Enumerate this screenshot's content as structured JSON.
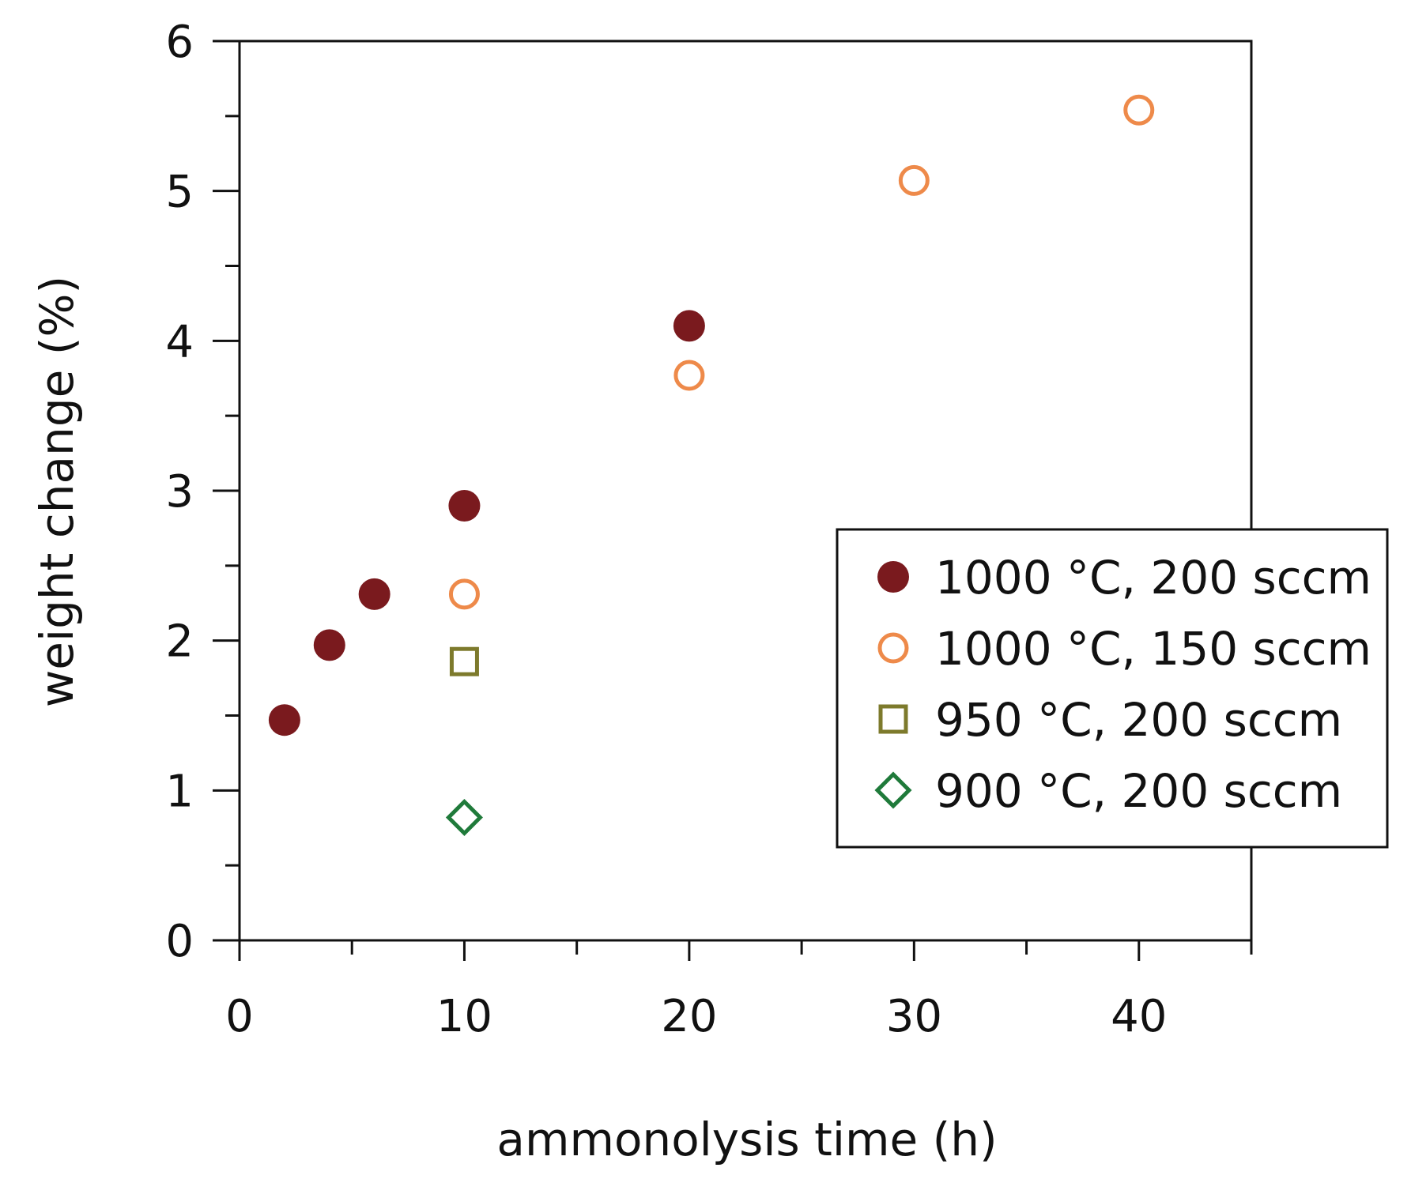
{
  "chart_data": {
    "type": "scatter",
    "xlabel": "ammonolysis time (h)",
    "ylabel": "weight change (%)",
    "xlim": [
      0,
      45
    ],
    "ylim": [
      0,
      6
    ],
    "x_ticks": [
      0,
      10,
      20,
      30,
      40
    ],
    "x_minor_ticks": [
      5,
      15,
      25,
      35,
      45
    ],
    "y_ticks": [
      0,
      1,
      2,
      3,
      4,
      5,
      6
    ],
    "y_minor_ticks": [
      0.5,
      1.5,
      2.5,
      3.5,
      4.5,
      5.5
    ],
    "grid": false,
    "legend_position": "right",
    "series": [
      {
        "name": "1000 °C, 200 sccm",
        "marker": "filled-circle",
        "color": "#7a1a1e",
        "points": [
          [
            2,
            1.47
          ],
          [
            4,
            1.97
          ],
          [
            6,
            2.31
          ],
          [
            10,
            2.9
          ],
          [
            20,
            4.1
          ]
        ]
      },
      {
        "name": "1000 °C, 150 sccm",
        "marker": "open-circle",
        "color": "#ee8a4a",
        "points": [
          [
            10,
            2.31
          ],
          [
            20,
            3.77
          ],
          [
            30,
            5.07
          ],
          [
            40,
            5.54
          ]
        ]
      },
      {
        "name": "950 °C, 200 sccm",
        "marker": "open-square",
        "color": "#7d7a2c",
        "points": [
          [
            10,
            1.86
          ]
        ]
      },
      {
        "name": "900 °C, 200 sccm",
        "marker": "open-diamond",
        "color": "#1f7a3a",
        "points": [
          [
            10,
            0.82
          ]
        ]
      }
    ]
  }
}
